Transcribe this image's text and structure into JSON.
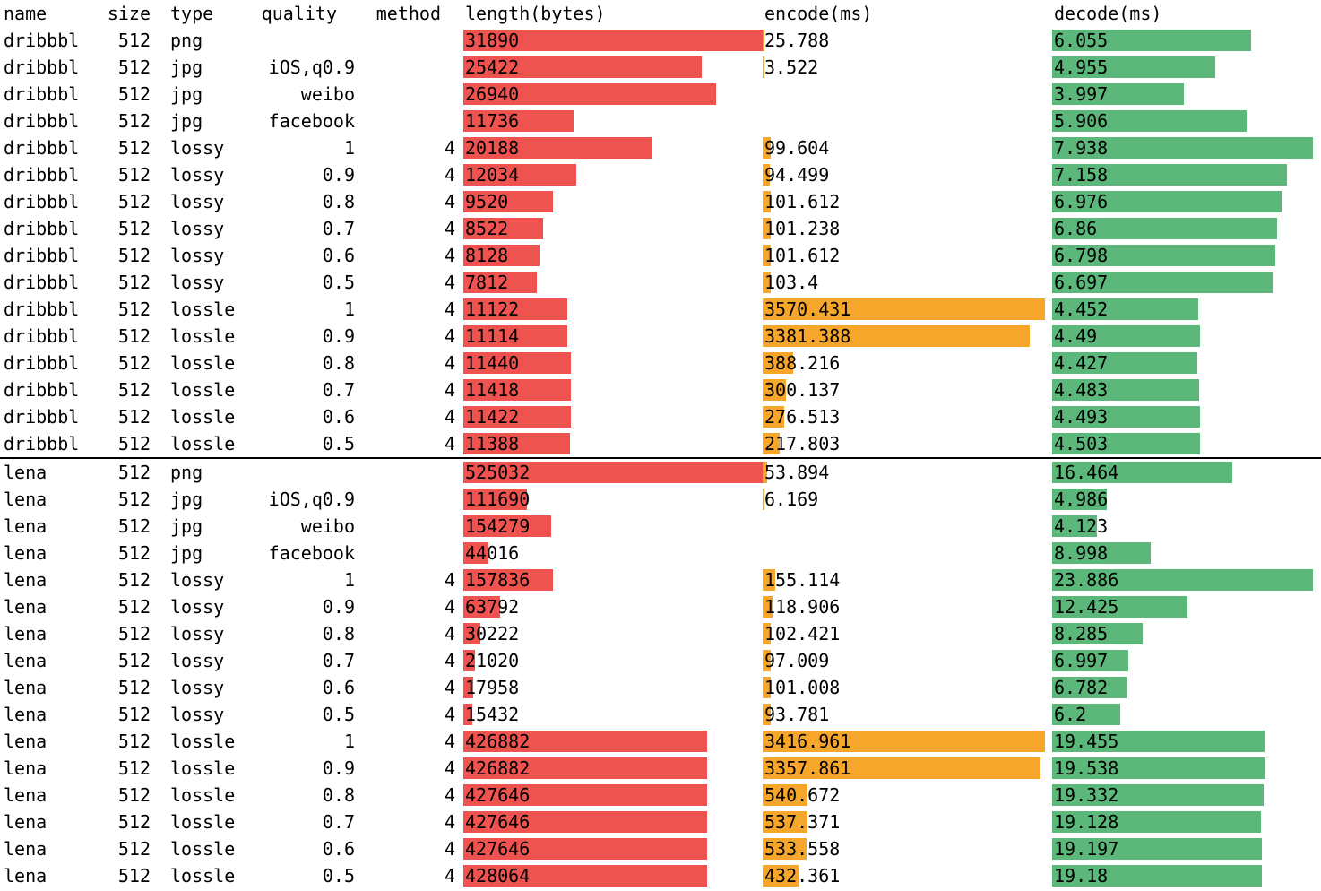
{
  "table": {
    "columns": [
      {
        "key": "name",
        "label": "name"
      },
      {
        "key": "size",
        "label": "size"
      },
      {
        "key": "type",
        "label": "type"
      },
      {
        "key": "quality",
        "label": "quality"
      },
      {
        "key": "method",
        "label": "method"
      },
      {
        "key": "length",
        "label": "length(bytes)"
      },
      {
        "key": "encode",
        "label": "encode(ms)"
      },
      {
        "key": "decode",
        "label": "decode(ms)"
      }
    ]
  },
  "colors": {
    "length_bar": "#ef5350",
    "encode_bar": "#f6a72b",
    "decode_bar": "#5cb87a",
    "divider": "#000000",
    "text": "#000000",
    "background": "#ffffff"
  },
  "chart_data": {
    "type": "table",
    "title": "",
    "bar_columns": [
      "length",
      "encode",
      "decode"
    ],
    "bar_scaling": "each bar column normalized to the max value within its group",
    "groups": [
      {
        "name": "dribbbl",
        "rows": [
          {
            "name": "dribbbl",
            "size": "512",
            "type": "png",
            "quality": "",
            "method": "",
            "length": "31890",
            "encode": "25.788",
            "decode": "6.055"
          },
          {
            "name": "dribbbl",
            "size": "512",
            "type": "jpg",
            "quality": "iOS,q0.9",
            "method": "",
            "length": "25422",
            "encode": "3.522",
            "decode": "4.955"
          },
          {
            "name": "dribbbl",
            "size": "512",
            "type": "jpg",
            "quality": "weibo",
            "method": "",
            "length": "26940",
            "encode": "",
            "decode": "3.997"
          },
          {
            "name": "dribbbl",
            "size": "512",
            "type": "jpg",
            "quality": "facebook",
            "method": "",
            "length": "11736",
            "encode": "",
            "decode": "5.906"
          },
          {
            "name": "dribbbl",
            "size": "512",
            "type": "lossy",
            "quality": "1",
            "method": "4",
            "length": "20188",
            "encode": "99.604",
            "decode": "7.938"
          },
          {
            "name": "dribbbl",
            "size": "512",
            "type": "lossy",
            "quality": "0.9",
            "method": "4",
            "length": "12034",
            "encode": "94.499",
            "decode": "7.158"
          },
          {
            "name": "dribbbl",
            "size": "512",
            "type": "lossy",
            "quality": "0.8",
            "method": "4",
            "length": "9520",
            "encode": "101.612",
            "decode": "6.976"
          },
          {
            "name": "dribbbl",
            "size": "512",
            "type": "lossy",
            "quality": "0.7",
            "method": "4",
            "length": "8522",
            "encode": "101.238",
            "decode": "6.86"
          },
          {
            "name": "dribbbl",
            "size": "512",
            "type": "lossy",
            "quality": "0.6",
            "method": "4",
            "length": "8128",
            "encode": "101.612",
            "decode": "6.798"
          },
          {
            "name": "dribbbl",
            "size": "512",
            "type": "lossy",
            "quality": "0.5",
            "method": "4",
            "length": "7812",
            "encode": "103.4",
            "decode": "6.697"
          },
          {
            "name": "dribbbl",
            "size": "512",
            "type": "lossle",
            "quality": "1",
            "method": "4",
            "length": "11122",
            "encode": "3570.431",
            "decode": "4.452"
          },
          {
            "name": "dribbbl",
            "size": "512",
            "type": "lossle",
            "quality": "0.9",
            "method": "4",
            "length": "11114",
            "encode": "3381.388",
            "decode": "4.49"
          },
          {
            "name": "dribbbl",
            "size": "512",
            "type": "lossle",
            "quality": "0.8",
            "method": "4",
            "length": "11440",
            "encode": "388.216",
            "decode": "4.427"
          },
          {
            "name": "dribbbl",
            "size": "512",
            "type": "lossle",
            "quality": "0.7",
            "method": "4",
            "length": "11418",
            "encode": "300.137",
            "decode": "4.483"
          },
          {
            "name": "dribbbl",
            "size": "512",
            "type": "lossle",
            "quality": "0.6",
            "method": "4",
            "length": "11422",
            "encode": "276.513",
            "decode": "4.493"
          },
          {
            "name": "dribbbl",
            "size": "512",
            "type": "lossle",
            "quality": "0.5",
            "method": "4",
            "length": "11388",
            "encode": "217.803",
            "decode": "4.503"
          }
        ]
      },
      {
        "name": "lena",
        "rows": [
          {
            "name": "lena",
            "size": "512",
            "type": "png",
            "quality": "",
            "method": "",
            "length": "525032",
            "encode": "53.894",
            "decode": "16.464"
          },
          {
            "name": "lena",
            "size": "512",
            "type": "jpg",
            "quality": "iOS,q0.9",
            "method": "",
            "length": "111690",
            "encode": "6.169",
            "decode": "4.986"
          },
          {
            "name": "lena",
            "size": "512",
            "type": "jpg",
            "quality": "weibo",
            "method": "",
            "length": "154279",
            "encode": "",
            "decode": "4.123"
          },
          {
            "name": "lena",
            "size": "512",
            "type": "jpg",
            "quality": "facebook",
            "method": "",
            "length": "44016",
            "encode": "",
            "decode": "8.998"
          },
          {
            "name": "lena",
            "size": "512",
            "type": "lossy",
            "quality": "1",
            "method": "4",
            "length": "157836",
            "encode": "155.114",
            "decode": "23.886"
          },
          {
            "name": "lena",
            "size": "512",
            "type": "lossy",
            "quality": "0.9",
            "method": "4",
            "length": "63792",
            "encode": "118.906",
            "decode": "12.425"
          },
          {
            "name": "lena",
            "size": "512",
            "type": "lossy",
            "quality": "0.8",
            "method": "4",
            "length": "30222",
            "encode": "102.421",
            "decode": "8.285"
          },
          {
            "name": "lena",
            "size": "512",
            "type": "lossy",
            "quality": "0.7",
            "method": "4",
            "length": "21020",
            "encode": "97.009",
            "decode": "6.997"
          },
          {
            "name": "lena",
            "size": "512",
            "type": "lossy",
            "quality": "0.6",
            "method": "4",
            "length": "17958",
            "encode": "101.008",
            "decode": "6.782"
          },
          {
            "name": "lena",
            "size": "512",
            "type": "lossy",
            "quality": "0.5",
            "method": "4",
            "length": "15432",
            "encode": "93.781",
            "decode": "6.2"
          },
          {
            "name": "lena",
            "size": "512",
            "type": "lossle",
            "quality": "1",
            "method": "4",
            "length": "426882",
            "encode": "3416.961",
            "decode": "19.455"
          },
          {
            "name": "lena",
            "size": "512",
            "type": "lossle",
            "quality": "0.9",
            "method": "4",
            "length": "426882",
            "encode": "3357.861",
            "decode": "19.538"
          },
          {
            "name": "lena",
            "size": "512",
            "type": "lossle",
            "quality": "0.8",
            "method": "4",
            "length": "427646",
            "encode": "540.672",
            "decode": "19.332"
          },
          {
            "name": "lena",
            "size": "512",
            "type": "lossle",
            "quality": "0.7",
            "method": "4",
            "length": "427646",
            "encode": "537.371",
            "decode": "19.128"
          },
          {
            "name": "lena",
            "size": "512",
            "type": "lossle",
            "quality": "0.6",
            "method": "4",
            "length": "427646",
            "encode": "533.558",
            "decode": "19.197"
          },
          {
            "name": "lena",
            "size": "512",
            "type": "lossle",
            "quality": "0.5",
            "method": "4",
            "length": "428064",
            "encode": "432.361",
            "decode": "19.18"
          }
        ]
      }
    ]
  }
}
